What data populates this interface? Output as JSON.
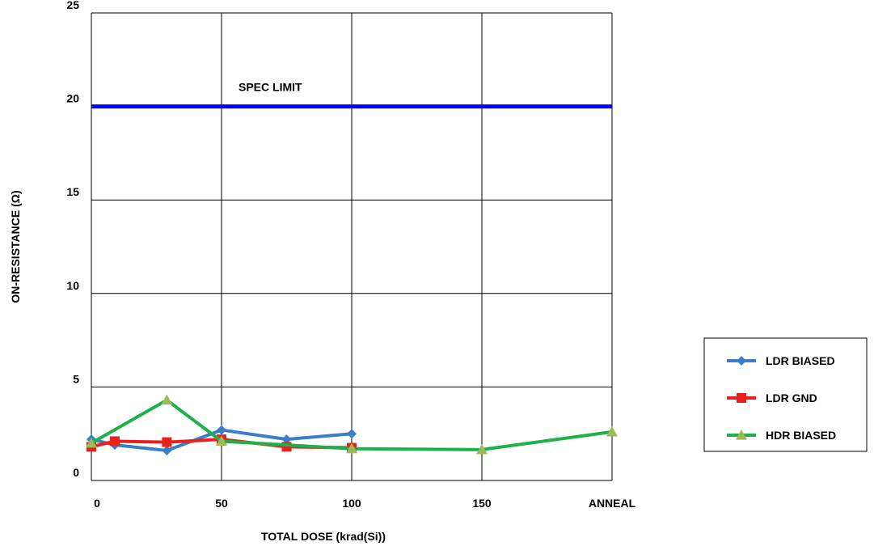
{
  "chart_data": {
    "type": "line",
    "title": "",
    "xlabel": "TOTAL DOSE (krad(Si))",
    "ylabel": "ON-RESISTANCE (Ω)",
    "ylim": [
      0,
      25
    ],
    "yticks": [
      "0",
      "5",
      "10",
      "15",
      "20",
      "25"
    ],
    "xlim": [
      0,
      200
    ],
    "xticks": [
      {
        "value": 0,
        "label": "0"
      },
      {
        "value": 50,
        "label": "50"
      },
      {
        "value": 100,
        "label": "100"
      },
      {
        "value": 150,
        "label": "150"
      },
      {
        "value": 200,
        "label": "ANNEAL"
      }
    ],
    "grid": true,
    "legend_position": "right",
    "spec_limit": {
      "value": 20,
      "label": "SPEC LIMIT",
      "color": "#0000ff"
    },
    "series": [
      {
        "name": "LDR BIASED",
        "color": "#3a7dc9",
        "marker": "diamond",
        "points": [
          [
            0,
            2.2
          ],
          [
            9,
            1.9
          ],
          [
            29,
            1.6
          ],
          [
            50,
            2.7
          ],
          [
            75,
            2.2
          ],
          [
            100,
            2.5
          ]
        ]
      },
      {
        "name": "LDR GND",
        "color": "#e8221b",
        "marker": "square",
        "points": [
          [
            0,
            1.8
          ],
          [
            9,
            2.1
          ],
          [
            29,
            2.05
          ],
          [
            50,
            2.2
          ],
          [
            75,
            1.8
          ],
          [
            100,
            1.75
          ]
        ]
      },
      {
        "name": "HDR BIASED",
        "color": "#1eb04c",
        "marker_color": "#9bbb59",
        "marker": "triangle",
        "points": [
          [
            0,
            2.0
          ],
          [
            29,
            4.3
          ],
          [
            50,
            2.1
          ],
          [
            100,
            1.7
          ],
          [
            150,
            1.65
          ],
          [
            200,
            2.6
          ]
        ]
      }
    ]
  }
}
